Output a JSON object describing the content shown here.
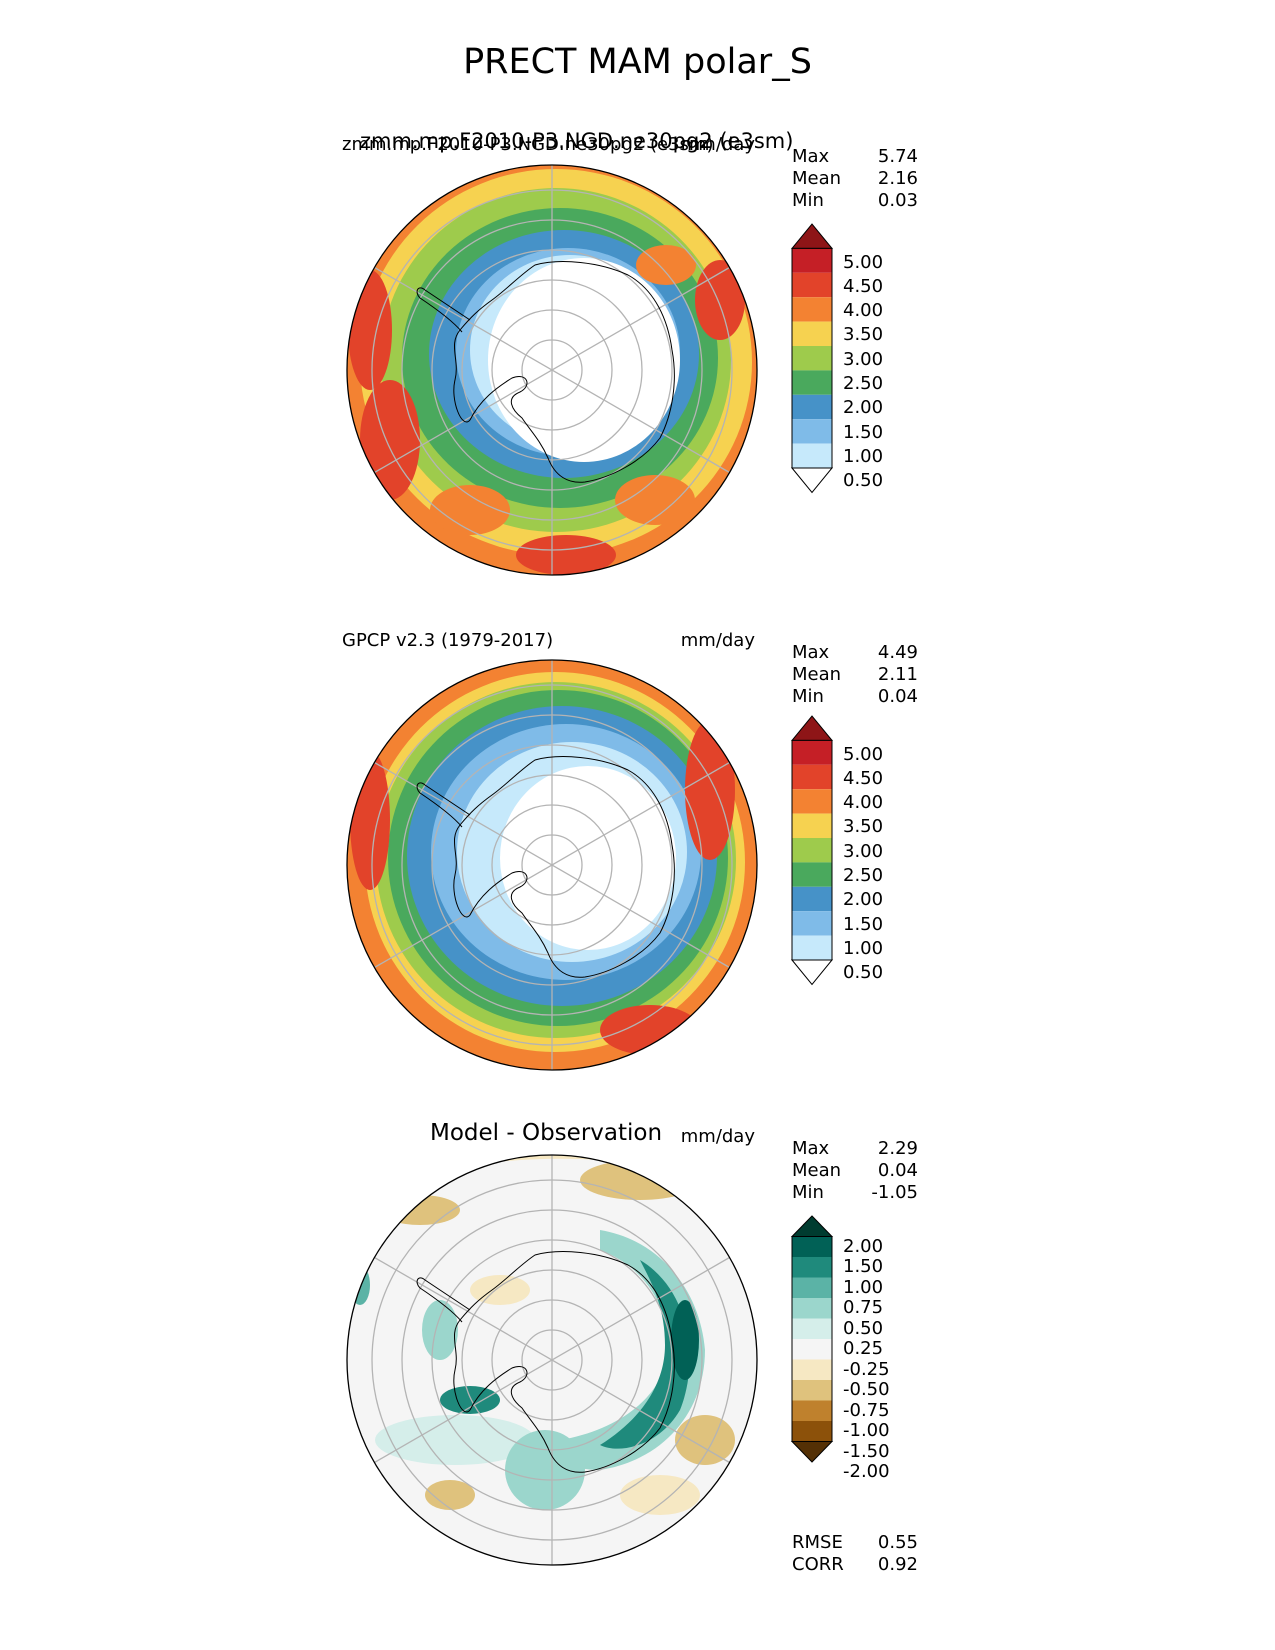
{
  "figure_title": "PRECT MAM polar_S",
  "panels": [
    {
      "left_title": "zmm.mp.F2010-P3.NGD.ne30pg2 (e3sm)",
      "left_title_overlap": "zmm.mp.F2010-P3.NGD.ne30pg2 (e3sm)",
      "right_title": "mm/day",
      "stats": {
        "max_label": "Max",
        "max": "5.74",
        "mean_label": "Mean",
        "mean": "2.16",
        "min_label": "Min",
        "min": "0.03"
      },
      "colorbar_ticks": [
        "5.00",
        "4.50",
        "4.00",
        "3.50",
        "3.00",
        "2.50",
        "2.00",
        "1.50",
        "1.00",
        "0.50"
      ]
    },
    {
      "left_title": "GPCP v2.3 (1979-2017)",
      "right_title": "mm/day",
      "stats": {
        "max_label": "Max",
        "max": "4.49",
        "mean_label": "Mean",
        "mean": "2.11",
        "min_label": "Min",
        "min": "0.04"
      },
      "colorbar_ticks": [
        "5.00",
        "4.50",
        "4.00",
        "3.50",
        "3.00",
        "2.50",
        "2.00",
        "1.50",
        "1.00",
        "0.50"
      ]
    },
    {
      "center_title": "Model - Observation",
      "right_title": "mm/day",
      "stats": {
        "max_label": "Max",
        "max": "2.29",
        "mean_label": "Mean",
        "mean": "0.04",
        "min_label": "Min",
        "min": "-1.05"
      },
      "colorbar_ticks": [
        "2.00",
        "1.50",
        "1.00",
        "0.75",
        "0.50",
        "0.25",
        "-0.25",
        "-0.50",
        "-0.75",
        "-1.00",
        "-1.50",
        "-2.00"
      ],
      "metrics": {
        "rmse_label": "RMSE",
        "rmse": "0.55",
        "corr_label": "CORR",
        "corr": "0.92"
      }
    }
  ],
  "colors": {
    "precip_scale": [
      "#ffffff",
      "#c6e9fb",
      "#7fbbe8",
      "#4692c8",
      "#4aa95d",
      "#9ecb4c",
      "#f6d250",
      "#f38232",
      "#e2432a",
      "#c51f26",
      "#8e1517"
    ],
    "diff_scale": [
      "#543005",
      "#8c510a",
      "#bf812d",
      "#dfc27d",
      "#f6e8c3",
      "#f5f5f5",
      "#d5eeea",
      "#9bd6cc",
      "#5bb3a6",
      "#1f8a7c",
      "#016156",
      "#003c30"
    ]
  }
}
